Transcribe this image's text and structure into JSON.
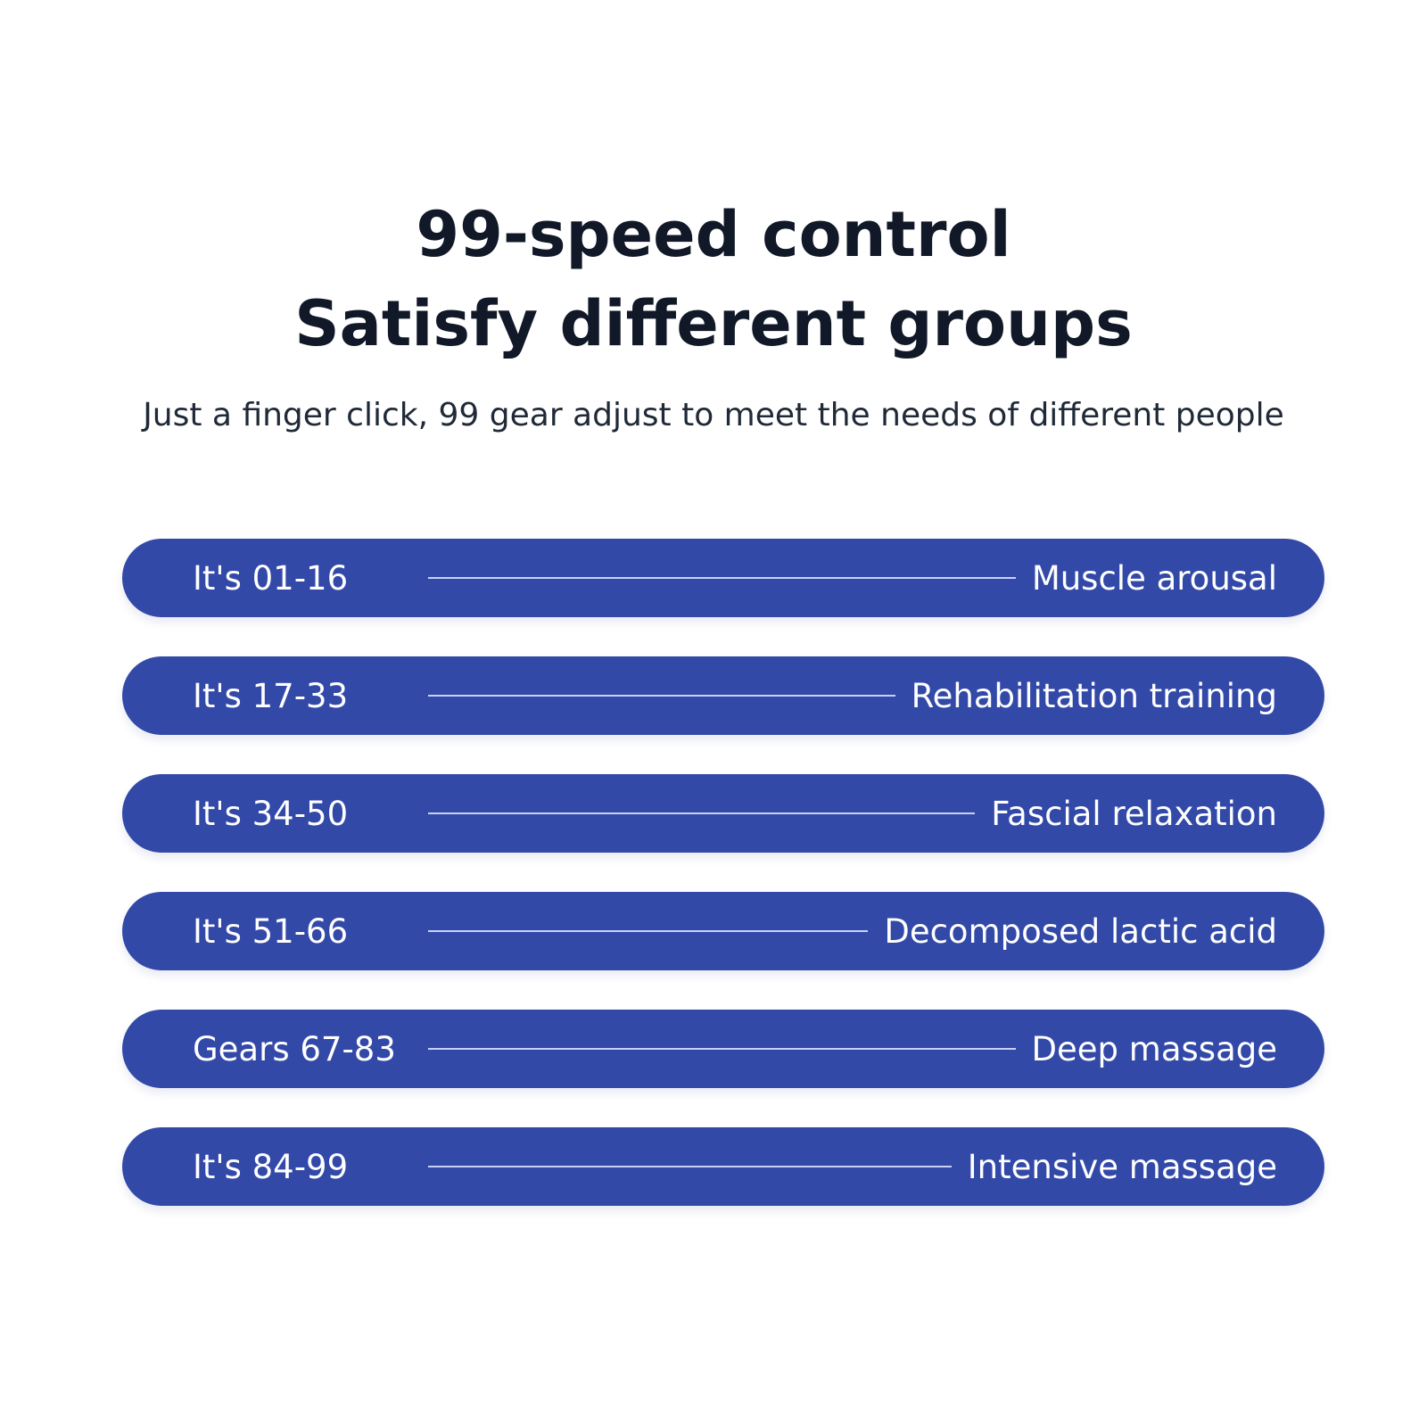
{
  "header": {
    "title_line1": "99-speed control",
    "title_line2": "Satisfy different groups",
    "subtitle": "Just a finger click, 99 gear adjust to meet the needs of different people"
  },
  "colors": {
    "row_background": "#3349a8",
    "connector_line": "#c9d2f5",
    "text_dark": "#111827"
  },
  "gear_rows": [
    {
      "range": "It's 01-16",
      "effect": "Muscle arousal"
    },
    {
      "range": "It's 17-33",
      "effect": "Rehabilitation training"
    },
    {
      "range": "It's 34-50",
      "effect": "Fascial relaxation"
    },
    {
      "range": "It's 51-66",
      "effect": "Decomposed lactic acid"
    },
    {
      "range": "Gears 67-83",
      "effect": "Deep massage"
    },
    {
      "range": "It's 84-99",
      "effect": "Intensive massage"
    }
  ]
}
